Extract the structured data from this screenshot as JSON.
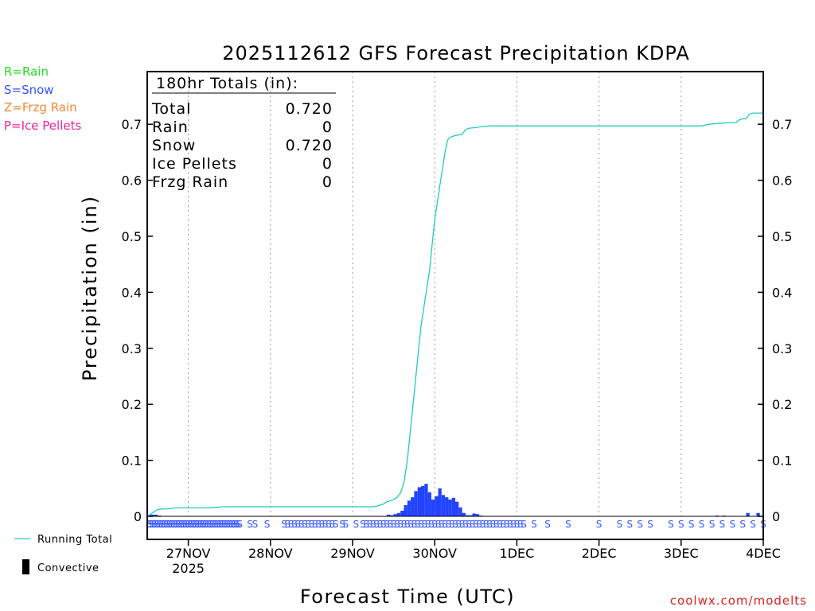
{
  "chart_data": {
    "type": "bar+line",
    "title": "2025112612 GFS Forecast Precipitation KDPA",
    "xlabel": "Forecast Time (UTC)",
    "ylabel": "Precipitation (in)",
    "ylim": [
      0,
      0.79
    ],
    "xlim_hours": [
      0,
      180
    ],
    "y_ticks": [
      0,
      0.1,
      0.2,
      0.3,
      0.4,
      0.5,
      0.6,
      0.7
    ],
    "y_tick_labels": [
      "0",
      "0.1",
      "0.2",
      "0.3",
      "0.4",
      "0.5",
      "0.6",
      "0.7"
    ],
    "x_ticks": [
      {
        "hour": 12,
        "label": "27NOV",
        "sublabel": "2025"
      },
      {
        "hour": 36,
        "label": "28NOV"
      },
      {
        "hour": 60,
        "label": "29NOV"
      },
      {
        "hour": 84,
        "label": "30NOV"
      },
      {
        "hour": 108,
        "label": "1DEC"
      },
      {
        "hour": 132,
        "label": "2DEC"
      },
      {
        "hour": 156,
        "label": "3DEC"
      },
      {
        "hour": 180,
        "label": "4DEC"
      }
    ],
    "running_total": [
      [
        0,
        0
      ],
      [
        1,
        0.004
      ],
      [
        2,
        0.008
      ],
      [
        3,
        0.012
      ],
      [
        4,
        0.013
      ],
      [
        5,
        0.013
      ],
      [
        7,
        0.014
      ],
      [
        8,
        0.015
      ],
      [
        10,
        0.015
      ],
      [
        12,
        0.015
      ],
      [
        18,
        0.015
      ],
      [
        20,
        0.016
      ],
      [
        22,
        0.017
      ],
      [
        36,
        0.017
      ],
      [
        48,
        0.017
      ],
      [
        60,
        0.017
      ],
      [
        66,
        0.017
      ],
      [
        67,
        0.018
      ],
      [
        68,
        0.02
      ],
      [
        69,
        0.022
      ],
      [
        70,
        0.026
      ],
      [
        71,
        0.028
      ],
      [
        72,
        0.03
      ],
      [
        73,
        0.034
      ],
      [
        74,
        0.042
      ],
      [
        74.5,
        0.05
      ],
      [
        75,
        0.06
      ],
      [
        75.5,
        0.08
      ],
      [
        76,
        0.1
      ],
      [
        76.5,
        0.13
      ],
      [
        77,
        0.16
      ],
      [
        77.5,
        0.19
      ],
      [
        78,
        0.22
      ],
      [
        78.5,
        0.25
      ],
      [
        79,
        0.28
      ],
      [
        79.5,
        0.31
      ],
      [
        80,
        0.34
      ],
      [
        80.5,
        0.36
      ],
      [
        81,
        0.38
      ],
      [
        81.5,
        0.4
      ],
      [
        82,
        0.42
      ],
      [
        82.5,
        0.44
      ],
      [
        83,
        0.47
      ],
      [
        83.5,
        0.5
      ],
      [
        84,
        0.53
      ],
      [
        84.5,
        0.55
      ],
      [
        85,
        0.57
      ],
      [
        85.5,
        0.59
      ],
      [
        86,
        0.61
      ],
      [
        86.5,
        0.63
      ],
      [
        87,
        0.65
      ],
      [
        87.5,
        0.665
      ],
      [
        88,
        0.675
      ],
      [
        89,
        0.678
      ],
      [
        90,
        0.68
      ],
      [
        92,
        0.682
      ],
      [
        93,
        0.69
      ],
      [
        94,
        0.693
      ],
      [
        96,
        0.694
      ],
      [
        98,
        0.696
      ],
      [
        100,
        0.697
      ],
      [
        108,
        0.697
      ],
      [
        132,
        0.697
      ],
      [
        156,
        0.697
      ],
      [
        162,
        0.697
      ],
      [
        164,
        0.7
      ],
      [
        166,
        0.701
      ],
      [
        168,
        0.702
      ],
      [
        170,
        0.703
      ],
      [
        172,
        0.703
      ],
      [
        173,
        0.708
      ],
      [
        174,
        0.71
      ],
      [
        175,
        0.71
      ],
      [
        176,
        0.718
      ],
      [
        177,
        0.72
      ],
      [
        180,
        0.72
      ]
    ],
    "bars": [
      [
        0.5,
        0.002
      ],
      [
        1.5,
        0.003
      ],
      [
        2.5,
        0.003
      ],
      [
        3.5,
        0.001
      ],
      [
        70.5,
        0.003
      ],
      [
        71.5,
        0.002
      ],
      [
        72.5,
        0.004
      ],
      [
        73.5,
        0.006
      ],
      [
        74.5,
        0.01
      ],
      [
        75.5,
        0.02
      ],
      [
        76.5,
        0.028
      ],
      [
        77.5,
        0.034
      ],
      [
        78.5,
        0.045
      ],
      [
        79.5,
        0.052
      ],
      [
        80.5,
        0.054
      ],
      [
        81.5,
        0.058
      ],
      [
        82.5,
        0.043
      ],
      [
        83.5,
        0.03
      ],
      [
        84.5,
        0.036
      ],
      [
        85.5,
        0.05
      ],
      [
        86.5,
        0.038
      ],
      [
        87.5,
        0.034
      ],
      [
        88.5,
        0.03
      ],
      [
        89.5,
        0.033
      ],
      [
        90.5,
        0.026
      ],
      [
        91.5,
        0.016
      ],
      [
        92.5,
        0.006
      ],
      [
        93.5,
        0.002
      ],
      [
        94.5,
        0.002
      ],
      [
        95.5,
        0.005
      ],
      [
        96.5,
        0.004
      ],
      [
        97.5,
        0.001
      ],
      [
        166.5,
        0.001
      ],
      [
        168.5,
        0.001
      ],
      [
        175.5,
        0.006
      ],
      [
        178.5,
        0.006
      ]
    ],
    "ptype_hours": [
      0.5,
      1,
      1.5,
      2,
      2.5,
      3,
      3.5,
      4,
      4.5,
      5,
      5.5,
      6,
      6.5,
      7,
      7.5,
      8,
      8.5,
      9,
      9.5,
      10,
      10.5,
      11,
      11.5,
      12,
      12.5,
      13,
      13.5,
      14,
      14.5,
      15,
      15.5,
      16,
      16.5,
      17,
      17.5,
      18,
      18.5,
      19,
      19.5,
      20,
      20.5,
      21,
      21.5,
      22,
      22.5,
      23,
      23.5,
      24,
      24.5,
      25,
      25.5,
      26,
      26.5,
      27,
      30,
      31.5,
      35,
      40,
      41,
      42,
      43,
      44,
      45,
      46,
      47,
      48,
      49,
      50,
      51,
      52,
      53,
      54,
      55,
      57,
      58,
      61,
      63,
      64,
      65,
      66,
      67,
      68,
      69,
      70,
      71,
      72,
      73,
      74,
      75,
      76,
      77,
      78,
      79,
      80,
      81,
      82,
      83,
      84,
      85,
      86,
      87,
      88,
      89,
      90,
      91,
      92,
      93,
      94,
      95,
      96,
      97,
      98,
      99,
      100,
      101,
      102,
      103,
      104,
      105,
      106,
      107,
      108,
      109,
      110,
      113,
      117,
      123,
      132,
      138,
      141,
      144,
      147,
      153,
      156,
      159,
      162,
      165,
      168,
      171,
      174,
      177,
      180
    ],
    "ptype_label": "S",
    "totals_box": {
      "heading": "180hr Totals (in):",
      "rows": [
        {
          "label": "Total",
          "value": "0.720"
        },
        {
          "label": "Rain",
          "value": "0"
        },
        {
          "label": "Snow",
          "value": "0.720"
        },
        {
          "label": "Ice Pellets",
          "value": "0"
        },
        {
          "label": "Frzg Rain",
          "value": "0"
        }
      ]
    },
    "series_legend": [
      {
        "name": "Running Total",
        "color": "#22ccbb"
      },
      {
        "name": "Convective",
        "color": "#000000"
      }
    ]
  },
  "ptype_legend": [
    {
      "text": "R=Rain",
      "color": "#22dd22"
    },
    {
      "text": "S=Snow",
      "color": "#3355ff"
    },
    {
      "text": "Z=Frzg Rain",
      "color": "#ee8833"
    },
    {
      "text": "P=Ice Pellets",
      "color": "#ee2299"
    }
  ],
  "colors": {
    "running_total": "#22ccbb",
    "bars": "#2244ff",
    "ptype_snow": "#3355ff",
    "watermark": "#dd2222",
    "grid": "#999999"
  },
  "watermark": "coolwx.com/modelts"
}
